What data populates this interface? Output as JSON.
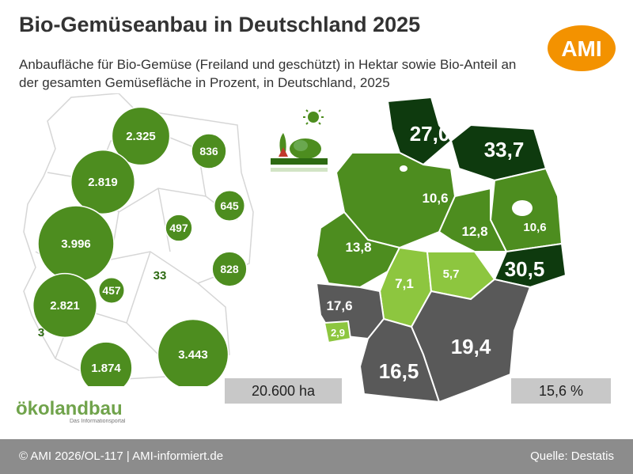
{
  "title": "Bio-Gemüseanbau in Deutschland 2025",
  "subtitle": "Anbaufläche für Bio-Gemüse (Freiland und geschützt) in Hektar sowie Bio-Anteil an der gesamten Gemüsefläche in Prozent, in Deutschland, 2025",
  "logo_text": "AMI",
  "left_map": {
    "total": "20.600 ha",
    "bubble_color": "#4d8d1f",
    "bubbles": [
      {
        "label": "2.325",
        "value": 2325
      },
      {
        "label": "2.819",
        "value": 2819
      },
      {
        "label": "836",
        "value": 836
      },
      {
        "label": "645",
        "value": 645
      },
      {
        "label": "497",
        "value": 497
      },
      {
        "label": "3.996",
        "value": 3996
      },
      {
        "label": "828",
        "value": 828
      },
      {
        "label": "457",
        "value": 457
      },
      {
        "label": "2.821",
        "value": 2821
      },
      {
        "label": "3.443",
        "value": 3443
      },
      {
        "label": "1.874",
        "value": 1874
      }
    ],
    "small_labels": [
      "33",
      "3"
    ]
  },
  "right_map": {
    "total": "15,6 %",
    "colors": {
      "dark": "#0e3a0e",
      "mid": "#4d8d1f",
      "light": "#8dc63f",
      "gray": "#595959"
    },
    "regions": [
      {
        "label": "27,0",
        "shade": "dark"
      },
      {
        "label": "33,7",
        "shade": "dark"
      },
      {
        "label": "10,6",
        "shade": "mid"
      },
      {
        "label": "12,8",
        "shade": "mid"
      },
      {
        "label": "10,6",
        "shade": "mid"
      },
      {
        "label": "13,8",
        "shade": "mid"
      },
      {
        "label": "30,5",
        "shade": "dark"
      },
      {
        "label": "7,1",
        "shade": "light"
      },
      {
        "label": "5,7",
        "shade": "light"
      },
      {
        "label": "17,6",
        "shade": "gray"
      },
      {
        "label": "2,9",
        "shade": "light"
      },
      {
        "label": "19,4",
        "shade": "gray"
      },
      {
        "label": "16,5",
        "shade": "gray"
      }
    ]
  },
  "oekolandbau": {
    "name": "ökolandbau",
    "tagline": "Das Informationsportal"
  },
  "footer": {
    "copyright": "© AMI 2026/OL-117 | AMI-informiert.de",
    "source": "Quelle: Destatis"
  }
}
